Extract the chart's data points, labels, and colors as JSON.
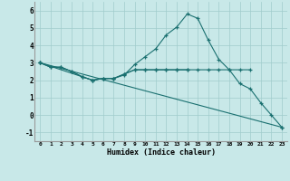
{
  "xlabel": "Humidex (Indice chaleur)",
  "xlim": [
    -0.5,
    23.5
  ],
  "ylim": [
    -1.5,
    6.5
  ],
  "xticks": [
    0,
    1,
    2,
    3,
    4,
    5,
    6,
    7,
    8,
    9,
    10,
    11,
    12,
    13,
    14,
    15,
    16,
    17,
    18,
    19,
    20,
    21,
    22,
    23
  ],
  "yticks": [
    -1,
    0,
    1,
    2,
    3,
    4,
    5,
    6
  ],
  "bg_color": "#c8e8e8",
  "line_color": "#1a7070",
  "lines": [
    {
      "x": [
        0,
        1,
        2,
        3,
        4,
        5,
        6,
        7,
        8,
        9,
        10,
        11,
        12,
        13,
        14,
        15,
        16,
        17,
        18,
        19,
        20,
        21,
        22,
        23
      ],
      "y": [
        3.0,
        2.75,
        2.75,
        2.5,
        2.2,
        2.0,
        2.1,
        2.1,
        2.3,
        2.9,
        3.35,
        3.8,
        4.6,
        5.05,
        5.8,
        5.55,
        4.3,
        3.2,
        2.6,
        1.8,
        1.5,
        0.7,
        0.0,
        -0.7
      ]
    },
    {
      "x": [
        0,
        1,
        2,
        3,
        4,
        5,
        6,
        7,
        8,
        9,
        10,
        11,
        12,
        13,
        14,
        15,
        16,
        17,
        18,
        19,
        20
      ],
      "y": [
        3.0,
        2.75,
        2.75,
        2.5,
        2.2,
        2.0,
        2.1,
        2.1,
        2.35,
        2.6,
        2.6,
        2.6,
        2.6,
        2.6,
        2.6,
        2.6,
        2.6,
        2.6,
        2.6,
        2.6,
        2.6
      ]
    },
    {
      "x": [
        0,
        4,
        5,
        6,
        7,
        8,
        9,
        10,
        11,
        12,
        13,
        14
      ],
      "y": [
        3.0,
        2.2,
        2.0,
        2.1,
        2.1,
        2.35,
        2.6,
        2.6,
        2.6,
        2.6,
        2.6,
        2.6
      ]
    },
    {
      "x": [
        0,
        23
      ],
      "y": [
        3.0,
        -0.7
      ]
    }
  ]
}
